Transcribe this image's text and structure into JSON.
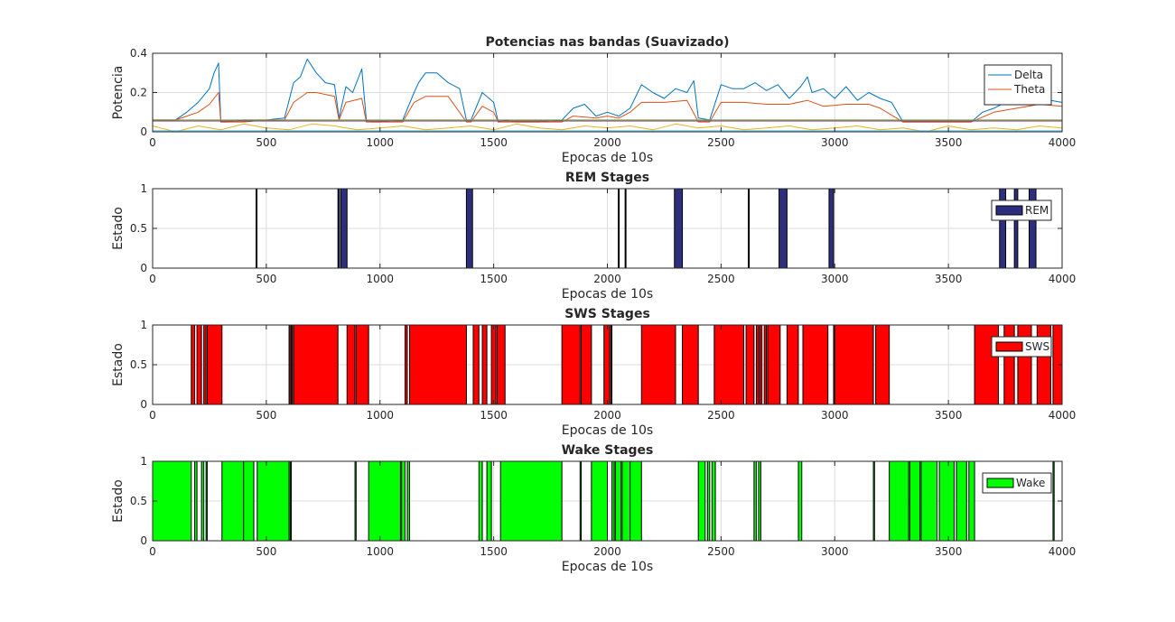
{
  "figure": {
    "background": "#ffffff",
    "subplots": 4
  },
  "chart_data": [
    {
      "type": "line",
      "title": "Potencias nas bandas (Suavizado)",
      "xlabel": "Epocas de 10s",
      "ylabel": "Potencia",
      "xlim": [
        0,
        4000
      ],
      "ylim": [
        0,
        0.4
      ],
      "xticks": [
        "0",
        "500",
        "1000",
        "1500",
        "2000",
        "2500",
        "3000",
        "3500",
        "4000"
      ],
      "yticks": [
        "0",
        "0.2",
        "0.4"
      ],
      "grid": true,
      "legend": "top-right",
      "series": [
        {
          "name": "Delta",
          "color": "#0072bd",
          "x": [
            0,
            100,
            150,
            200,
            250,
            270,
            290,
            300,
            330,
            400,
            500,
            580,
            620,
            650,
            680,
            720,
            760,
            800,
            820,
            850,
            880,
            920,
            940,
            960,
            1000,
            1100,
            1150,
            1170,
            1200,
            1250,
            1280,
            1300,
            1350,
            1380,
            1400,
            1450,
            1500,
            1520,
            1550,
            1600,
            1700,
            1800,
            1850,
            1900,
            1950,
            2000,
            2050,
            2100,
            2150,
            2200,
            2250,
            2300,
            2350,
            2380,
            2400,
            2450,
            2500,
            2550,
            2600,
            2650,
            2700,
            2750,
            2800,
            2850,
            2880,
            2900,
            2950,
            3000,
            3050,
            3100,
            3150,
            3200,
            3250,
            3300,
            3400,
            3500,
            3600,
            3650,
            3700,
            3750,
            3800,
            3850,
            3900,
            3950,
            4000
          ],
          "values": [
            0.06,
            0.06,
            0.1,
            0.15,
            0.22,
            0.3,
            0.35,
            0.05,
            0.05,
            0.06,
            0.06,
            0.07,
            0.25,
            0.28,
            0.37,
            0.3,
            0.25,
            0.24,
            0.07,
            0.23,
            0.2,
            0.32,
            0.06,
            0.05,
            0.05,
            0.06,
            0.2,
            0.25,
            0.3,
            0.3,
            0.27,
            0.25,
            0.22,
            0.06,
            0.06,
            0.2,
            0.15,
            0.05,
            0.06,
            0.05,
            0.05,
            0.06,
            0.12,
            0.14,
            0.08,
            0.1,
            0.08,
            0.12,
            0.24,
            0.2,
            0.17,
            0.22,
            0.2,
            0.26,
            0.07,
            0.06,
            0.24,
            0.22,
            0.22,
            0.25,
            0.21,
            0.24,
            0.17,
            0.23,
            0.28,
            0.2,
            0.22,
            0.17,
            0.23,
            0.16,
            0.2,
            0.17,
            0.15,
            0.05,
            0.05,
            0.05,
            0.05,
            0.1,
            0.12,
            0.15,
            0.17,
            0.18,
            0.15,
            0.16,
            0.15
          ]
        },
        {
          "name": "Theta",
          "color": "#d95319",
          "x": [
            0,
            100,
            150,
            200,
            250,
            290,
            300,
            400,
            500,
            580,
            620,
            680,
            720,
            800,
            820,
            850,
            920,
            940,
            1000,
            1100,
            1150,
            1200,
            1300,
            1380,
            1400,
            1450,
            1500,
            1520,
            1600,
            1800,
            1850,
            1950,
            2000,
            2050,
            2100,
            2150,
            2250,
            2350,
            2400,
            2450,
            2500,
            2600,
            2700,
            2800,
            2880,
            2950,
            3050,
            3150,
            3200,
            3300,
            3500,
            3600,
            3700,
            3800,
            3900,
            4000
          ],
          "values": [
            0.06,
            0.06,
            0.08,
            0.1,
            0.14,
            0.2,
            0.05,
            0.05,
            0.06,
            0.06,
            0.15,
            0.2,
            0.2,
            0.18,
            0.06,
            0.15,
            0.17,
            0.05,
            0.05,
            0.05,
            0.15,
            0.18,
            0.18,
            0.05,
            0.05,
            0.13,
            0.1,
            0.05,
            0.05,
            0.05,
            0.08,
            0.07,
            0.08,
            0.07,
            0.1,
            0.15,
            0.15,
            0.16,
            0.05,
            0.05,
            0.15,
            0.15,
            0.14,
            0.14,
            0.16,
            0.13,
            0.14,
            0.14,
            0.12,
            0.05,
            0.05,
            0.05,
            0.1,
            0.12,
            0.14,
            0.13
          ]
        },
        {
          "name": "",
          "color": "#edb120",
          "x": [
            0,
            100,
            200,
            300,
            400,
            500,
            600,
            700,
            800,
            900,
            1000,
            1100,
            1200,
            1300,
            1400,
            1500,
            1600,
            1700,
            1800,
            1900,
            2000,
            2100,
            2200,
            2300,
            2400,
            2500,
            2600,
            2700,
            2800,
            2900,
            3000,
            3100,
            3200,
            3300,
            3400,
            3500,
            3600,
            3700,
            3800,
            3900,
            4000
          ],
          "values": [
            0.03,
            0.0,
            0.03,
            0.01,
            0.04,
            0.02,
            0.01,
            0.04,
            0.03,
            0.01,
            0.02,
            0.03,
            0.01,
            0.02,
            0.03,
            0.01,
            0.04,
            0.02,
            0.01,
            0.03,
            0.02,
            0.03,
            0.01,
            0.04,
            0.02,
            0.03,
            0.01,
            0.02,
            0.03,
            0.01,
            0.02,
            0.03,
            0.01,
            0.02,
            0.0,
            0.03,
            0.01,
            0.02,
            0.01,
            0.03,
            0.02
          ]
        },
        {
          "name": "",
          "color": "#4dbeee",
          "x": [
            0,
            4000
          ],
          "values": [
            0.005,
            0.005
          ]
        },
        {
          "name": "",
          "color": "#7e2f8e",
          "x": [
            0,
            4000
          ],
          "values": [
            0.055,
            0.055
          ]
        },
        {
          "name": "",
          "color": "#77ac30",
          "x": [
            0,
            4000
          ],
          "values": [
            0.06,
            0.06
          ]
        }
      ]
    },
    {
      "type": "area",
      "title": "REM Stages",
      "xlabel": "Epocas de 10s",
      "ylabel": "Estado",
      "xlim": [
        0,
        4000
      ],
      "ylim": [
        0,
        1
      ],
      "xticks": [
        "0",
        "500",
        "1000",
        "1500",
        "2000",
        "2500",
        "3000",
        "3500",
        "4000"
      ],
      "yticks": [
        "0",
        "0.5",
        "1"
      ],
      "grid": true,
      "legend": "top-right",
      "series": [
        {
          "name": "REM",
          "color": "#2e2e7e",
          "intervals": [
            [
              455,
              458
            ],
            [
              815,
              822
            ],
            [
              828,
              855
            ],
            [
              1380,
              1407
            ],
            [
              2048,
              2051
            ],
            [
              2078,
              2081
            ],
            [
              2295,
              2330
            ],
            [
              2620,
              2623
            ],
            [
              2755,
              2790
            ],
            [
              2975,
              2995
            ],
            [
              3725,
              3752
            ],
            [
              3790,
              3805
            ],
            [
              3855,
              3885
            ]
          ]
        }
      ]
    },
    {
      "type": "area",
      "title": "SWS Stages",
      "xlabel": "Epocas de 10s",
      "ylabel": "Estado",
      "xlim": [
        0,
        4000
      ],
      "ylim": [
        0,
        1
      ],
      "xticks": [
        "0",
        "500",
        "1000",
        "1500",
        "2000",
        "2500",
        "3000",
        "3500",
        "4000"
      ],
      "yticks": [
        "0",
        "0.5",
        "1"
      ],
      "grid": true,
      "legend": "top-right",
      "series": [
        {
          "name": "SWS",
          "color": "#ff0000",
          "intervals": [
            [
              170,
              185
            ],
            [
              195,
              215
            ],
            [
              225,
              235
            ],
            [
              240,
              305
            ],
            [
              600,
              605
            ],
            [
              610,
              615
            ],
            [
              620,
              815
            ],
            [
              855,
              890
            ],
            [
              895,
              950
            ],
            [
              1110,
              1120
            ],
            [
              1130,
              1380
            ],
            [
              1410,
              1435
            ],
            [
              1450,
              1470
            ],
            [
              1490,
              1510
            ],
            [
              1515,
              1550
            ],
            [
              1800,
              1880
            ],
            [
              1885,
              1930
            ],
            [
              1985,
              2010
            ],
            [
              2015,
              2020
            ],
            [
              2150,
              2300
            ],
            [
              2330,
              2400
            ],
            [
              2470,
              2600
            ],
            [
              2610,
              2645
            ],
            [
              2655,
              2665
            ],
            [
              2670,
              2680
            ],
            [
              2690,
              2700
            ],
            [
              2705,
              2760
            ],
            [
              2790,
              2840
            ],
            [
              2860,
              2970
            ],
            [
              2995,
              3000
            ],
            [
              3000,
              3170
            ],
            [
              3180,
              3240
            ],
            [
              3615,
              3720
            ],
            [
              3745,
              3790
            ],
            [
              3805,
              3865
            ],
            [
              3890,
              3950
            ],
            [
              3960,
              4000
            ]
          ]
        }
      ]
    },
    {
      "type": "area",
      "title": "Wake Stages",
      "xlabel": "Epocas de 10s",
      "ylabel": "Estado",
      "xlim": [
        0,
        4000
      ],
      "ylim": [
        0,
        1
      ],
      "xticks": [
        "0",
        "500",
        "1000",
        "1500",
        "2000",
        "2500",
        "3000",
        "3500",
        "4000"
      ],
      "yticks": [
        "0",
        "0.5",
        "1"
      ],
      "grid": true,
      "legend": "top-right",
      "series": [
        {
          "name": "Wake",
          "color": "#00ff00",
          "intervals": [
            [
              0,
              170
            ],
            [
              185,
              195
            ],
            [
              215,
              225
            ],
            [
              235,
              240
            ],
            [
              305,
              400
            ],
            [
              400,
              445
            ],
            [
              460,
              600
            ],
            [
              605,
              610
            ],
            [
              890,
              895
            ],
            [
              950,
              1090
            ],
            [
              1095,
              1110
            ],
            [
              1120,
              1130
            ],
            [
              1435,
              1450
            ],
            [
              1470,
              1490
            ],
            [
              1530,
              1800
            ],
            [
              1880,
              1885
            ],
            [
              1930,
              2000
            ],
            [
              2020,
              2030
            ],
            [
              2035,
              2060
            ],
            [
              2065,
              2100
            ],
            [
              2100,
              2150
            ],
            [
              2400,
              2430
            ],
            [
              2440,
              2450
            ],
            [
              2460,
              2475
            ],
            [
              2645,
              2655
            ],
            [
              2665,
              2675
            ],
            [
              2840,
              2855
            ],
            [
              3170,
              3175
            ],
            [
              3240,
              3325
            ],
            [
              3330,
              3375
            ],
            [
              3380,
              3450
            ],
            [
              3460,
              3525
            ],
            [
              3535,
              3580
            ],
            [
              3590,
              3615
            ],
            [
              3960,
              3965
            ]
          ]
        }
      ]
    }
  ]
}
